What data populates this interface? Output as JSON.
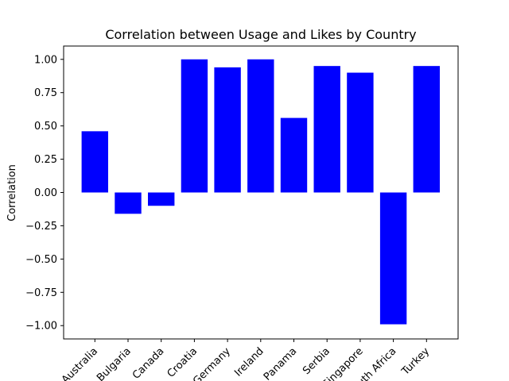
{
  "chart_data": {
    "type": "bar",
    "title": "Correlation between Usage and Likes by Country",
    "xlabel": "",
    "ylabel": "Correlation",
    "categories": [
      "Australia",
      "Bulgaria",
      "Canada",
      "Croatia",
      "Germany",
      "Ireland",
      "Panama",
      "Serbia",
      "Singapore",
      "South Africa",
      "Turkey"
    ],
    "values": [
      0.46,
      -0.16,
      -0.1,
      1.0,
      0.94,
      1.0,
      0.56,
      0.95,
      0.9,
      -0.99,
      0.95
    ],
    "ylim": [
      -1.1,
      1.1
    ],
    "yticks": [
      "1.00",
      "0.75",
      "0.50",
      "0.25",
      "0.00",
      "−0.25",
      "−0.50",
      "−0.75",
      "−1.00"
    ],
    "ytick_values": [
      1.0,
      0.75,
      0.5,
      0.25,
      0.0,
      -0.25,
      -0.5,
      -0.75,
      -1.0
    ],
    "bar_color": "#0000ff",
    "grid": false,
    "x_tick_rotation_deg": 45
  }
}
